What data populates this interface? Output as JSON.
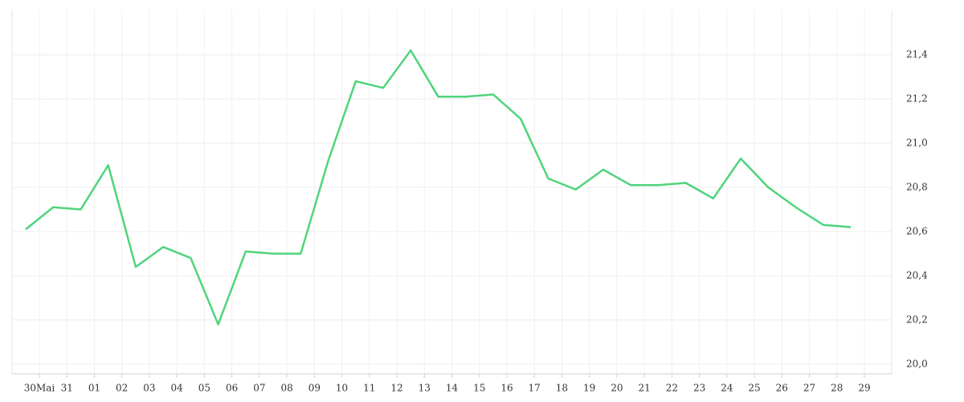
{
  "chart_data": {
    "type": "line",
    "categories": [
      "30Mai",
      "31",
      "01",
      "02",
      "03",
      "04",
      "05",
      "06",
      "07",
      "08",
      "09",
      "10",
      "11",
      "12",
      "13",
      "14",
      "15",
      "16",
      "17",
      "18",
      "19",
      "20",
      "21",
      "22",
      "23",
      "24",
      "25",
      "26",
      "27",
      "28",
      "29"
    ],
    "series": [
      {
        "color": "#4fd47c",
        "values": [
          20.61,
          20.71,
          20.7,
          20.9,
          20.44,
          20.53,
          20.48,
          20.18,
          20.51,
          20.5,
          20.5,
          20.92,
          21.28,
          21.25,
          21.42,
          21.21,
          21.21,
          21.22,
          21.11,
          20.84,
          20.79,
          20.88,
          20.81,
          20.81,
          20.82,
          20.75,
          20.93,
          20.8,
          20.71,
          20.63,
          20.62
        ]
      }
    ],
    "ylim": [
      19.956,
      21.604
    ],
    "yticks": [
      {
        "value": 20.0,
        "label": "20,0"
      },
      {
        "value": 20.2,
        "label": "20,2"
      },
      {
        "value": 20.4,
        "label": "20,4"
      },
      {
        "value": 20.6,
        "label": "20,6"
      },
      {
        "value": 20.8,
        "label": "20,8"
      },
      {
        "value": 21.0,
        "label": "21,0"
      },
      {
        "value": 21.2,
        "label": "21,2"
      },
      {
        "value": 21.4,
        "label": "21,4"
      }
    ],
    "grid": true
  }
}
